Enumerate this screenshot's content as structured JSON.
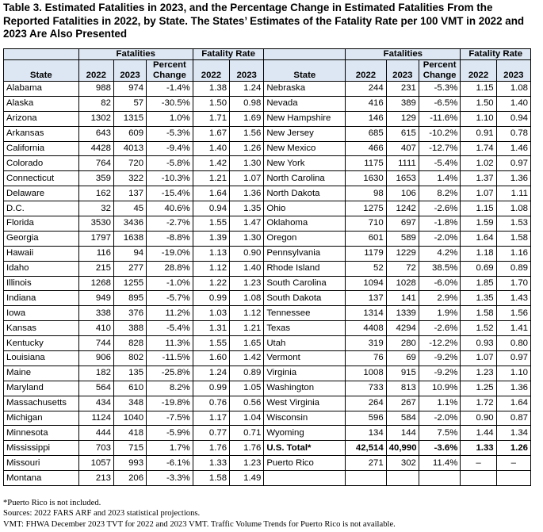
{
  "title": "Table 3. Estimated Fatalities in 2023, and the Percentage Change in Estimated Fatalities From the Reported Fatalities in 2022, by State. The States’ Estimates of the Fatality Rate per 100 VMT in 2022 and 2023 Are Also Presented",
  "headers": {
    "fatalities": "Fatalities",
    "fatality_rate": "Fatality Rate",
    "state": "State",
    "y2022": "2022",
    "y2023": "2023",
    "percent_change": "Percent Change"
  },
  "left_rows": [
    {
      "state": "Alabama",
      "f2022": "988",
      "f2023": "974",
      "pct": "-1.4%",
      "r2022": "1.38",
      "r2023": "1.24"
    },
    {
      "state": "Alaska",
      "f2022": "82",
      "f2023": "57",
      "pct": "-30.5%",
      "r2022": "1.50",
      "r2023": "0.98"
    },
    {
      "state": "Arizona",
      "f2022": "1302",
      "f2023": "1315",
      "pct": "1.0%",
      "r2022": "1.71",
      "r2023": "1.69"
    },
    {
      "state": "Arkansas",
      "f2022": "643",
      "f2023": "609",
      "pct": "-5.3%",
      "r2022": "1.67",
      "r2023": "1.56"
    },
    {
      "state": "California",
      "f2022": "4428",
      "f2023": "4013",
      "pct": "-9.4%",
      "r2022": "1.40",
      "r2023": "1.26"
    },
    {
      "state": "Colorado",
      "f2022": "764",
      "f2023": "720",
      "pct": "-5.8%",
      "r2022": "1.42",
      "r2023": "1.30"
    },
    {
      "state": "Connecticut",
      "f2022": "359",
      "f2023": "322",
      "pct": "-10.3%",
      "r2022": "1.21",
      "r2023": "1.07"
    },
    {
      "state": "Delaware",
      "f2022": "162",
      "f2023": "137",
      "pct": "-15.4%",
      "r2022": "1.64",
      "r2023": "1.36"
    },
    {
      "state": "D.C.",
      "f2022": "32",
      "f2023": "45",
      "pct": "40.6%",
      "r2022": "0.94",
      "r2023": "1.35"
    },
    {
      "state": "Florida",
      "f2022": "3530",
      "f2023": "3436",
      "pct": "-2.7%",
      "r2022": "1.55",
      "r2023": "1.47"
    },
    {
      "state": "Georgia",
      "f2022": "1797",
      "f2023": "1638",
      "pct": "-8.8%",
      "r2022": "1.39",
      "r2023": "1.30"
    },
    {
      "state": "Hawaii",
      "f2022": "116",
      "f2023": "94",
      "pct": "-19.0%",
      "r2022": "1.13",
      "r2023": "0.90"
    },
    {
      "state": "Idaho",
      "f2022": "215",
      "f2023": "277",
      "pct": "28.8%",
      "r2022": "1.12",
      "r2023": "1.40"
    },
    {
      "state": "Illinois",
      "f2022": "1268",
      "f2023": "1255",
      "pct": "-1.0%",
      "r2022": "1.22",
      "r2023": "1.23"
    },
    {
      "state": "Indiana",
      "f2022": "949",
      "f2023": "895",
      "pct": "-5.7%",
      "r2022": "0.99",
      "r2023": "1.08"
    },
    {
      "state": "Iowa",
      "f2022": "338",
      "f2023": "376",
      "pct": "11.2%",
      "r2022": "1.03",
      "r2023": "1.12"
    },
    {
      "state": "Kansas",
      "f2022": "410",
      "f2023": "388",
      "pct": "-5.4%",
      "r2022": "1.31",
      "r2023": "1.21"
    },
    {
      "state": "Kentucky",
      "f2022": "744",
      "f2023": "828",
      "pct": "11.3%",
      "r2022": "1.55",
      "r2023": "1.65"
    },
    {
      "state": "Louisiana",
      "f2022": "906",
      "f2023": "802",
      "pct": "-11.5%",
      "r2022": "1.60",
      "r2023": "1.42"
    },
    {
      "state": "Maine",
      "f2022": "182",
      "f2023": "135",
      "pct": "-25.8%",
      "r2022": "1.24",
      "r2023": "0.89"
    },
    {
      "state": "Maryland",
      "f2022": "564",
      "f2023": "610",
      "pct": "8.2%",
      "r2022": "0.99",
      "r2023": "1.05"
    },
    {
      "state": "Massachusetts",
      "f2022": "434",
      "f2023": "348",
      "pct": "-19.8%",
      "r2022": "0.76",
      "r2023": "0.56"
    },
    {
      "state": "Michigan",
      "f2022": "1124",
      "f2023": "1040",
      "pct": "-7.5%",
      "r2022": "1.17",
      "r2023": "1.04"
    },
    {
      "state": "Minnesota",
      "f2022": "444",
      "f2023": "418",
      "pct": "-5.9%",
      "r2022": "0.77",
      "r2023": "0.71"
    },
    {
      "state": "Mississippi",
      "f2022": "703",
      "f2023": "715",
      "pct": "1.7%",
      "r2022": "1.76",
      "r2023": "1.76"
    },
    {
      "state": "Missouri",
      "f2022": "1057",
      "f2023": "993",
      "pct": "-6.1%",
      "r2022": "1.33",
      "r2023": "1.23"
    },
    {
      "state": "Montana",
      "f2022": "213",
      "f2023": "206",
      "pct": "-3.3%",
      "r2022": "1.58",
      "r2023": "1.49"
    }
  ],
  "right_rows": [
    {
      "state": "Nebraska",
      "f2022": "244",
      "f2023": "231",
      "pct": "-5.3%",
      "r2022": "1.15",
      "r2023": "1.08"
    },
    {
      "state": "Nevada",
      "f2022": "416",
      "f2023": "389",
      "pct": "-6.5%",
      "r2022": "1.50",
      "r2023": "1.40"
    },
    {
      "state": "New Hampshire",
      "f2022": "146",
      "f2023": "129",
      "pct": "-11.6%",
      "r2022": "1.10",
      "r2023": "0.94"
    },
    {
      "state": "New Jersey",
      "f2022": "685",
      "f2023": "615",
      "pct": "-10.2%",
      "r2022": "0.91",
      "r2023": "0.78"
    },
    {
      "state": "New Mexico",
      "f2022": "466",
      "f2023": "407",
      "pct": "-12.7%",
      "r2022": "1.74",
      "r2023": "1.46"
    },
    {
      "state": "New York",
      "f2022": "1175",
      "f2023": "1111",
      "pct": "-5.4%",
      "r2022": "1.02",
      "r2023": "0.97"
    },
    {
      "state": "North Carolina",
      "f2022": "1630",
      "f2023": "1653",
      "pct": "1.4%",
      "r2022": "1.37",
      "r2023": "1.36"
    },
    {
      "state": "North Dakota",
      "f2022": "98",
      "f2023": "106",
      "pct": "8.2%",
      "r2022": "1.07",
      "r2023": "1.11"
    },
    {
      "state": "Ohio",
      "f2022": "1275",
      "f2023": "1242",
      "pct": "-2.6%",
      "r2022": "1.15",
      "r2023": "1.08"
    },
    {
      "state": "Oklahoma",
      "f2022": "710",
      "f2023": "697",
      "pct": "-1.8%",
      "r2022": "1.59",
      "r2023": "1.53"
    },
    {
      "state": "Oregon",
      "f2022": "601",
      "f2023": "589",
      "pct": "-2.0%",
      "r2022": "1.64",
      "r2023": "1.58"
    },
    {
      "state": "Pennsylvania",
      "f2022": "1179",
      "f2023": "1229",
      "pct": "4.2%",
      "r2022": "1.18",
      "r2023": "1.16"
    },
    {
      "state": "Rhode Island",
      "f2022": "52",
      "f2023": "72",
      "pct": "38.5%",
      "r2022": "0.69",
      "r2023": "0.89"
    },
    {
      "state": "South Carolina",
      "f2022": "1094",
      "f2023": "1028",
      "pct": "-6.0%",
      "r2022": "1.85",
      "r2023": "1.70"
    },
    {
      "state": "South Dakota",
      "f2022": "137",
      "f2023": "141",
      "pct": "2.9%",
      "r2022": "1.35",
      "r2023": "1.43"
    },
    {
      "state": "Tennessee",
      "f2022": "1314",
      "f2023": "1339",
      "pct": "1.9%",
      "r2022": "1.58",
      "r2023": "1.56"
    },
    {
      "state": "Texas",
      "f2022": "4408",
      "f2023": "4294",
      "pct": "-2.6%",
      "r2022": "1.52",
      "r2023": "1.41"
    },
    {
      "state": "Utah",
      "f2022": "319",
      "f2023": "280",
      "pct": "-12.2%",
      "r2022": "0.93",
      "r2023": "0.80"
    },
    {
      "state": "Vermont",
      "f2022": "76",
      "f2023": "69",
      "pct": "-9.2%",
      "r2022": "1.07",
      "r2023": "0.97"
    },
    {
      "state": "Virginia",
      "f2022": "1008",
      "f2023": "915",
      "pct": "-9.2%",
      "r2022": "1.23",
      "r2023": "1.10"
    },
    {
      "state": "Washington",
      "f2022": "733",
      "f2023": "813",
      "pct": "10.9%",
      "r2022": "1.25",
      "r2023": "1.36"
    },
    {
      "state": "West Virginia",
      "f2022": "264",
      "f2023": "267",
      "pct": "1.1%",
      "r2022": "1.72",
      "r2023": "1.64"
    },
    {
      "state": "Wisconsin",
      "f2022": "596",
      "f2023": "584",
      "pct": "-2.0%",
      "r2022": "0.90",
      "r2023": "0.87"
    },
    {
      "state": "Wyoming",
      "f2022": "134",
      "f2023": "144",
      "pct": "7.5%",
      "r2022": "1.44",
      "r2023": "1.34"
    },
    {
      "state": "U.S. Total*",
      "f2022": "42,514",
      "f2023": "40,990",
      "pct": "-3.6%",
      "r2022": "1.33",
      "r2023": "1.26",
      "bold": true
    },
    {
      "state": "Puerto Rico",
      "f2022": "271",
      "f2023": "302",
      "pct": "11.4%",
      "r2022": "–",
      "r2023": "–"
    }
  ],
  "footnotes": [
    "*Puerto Rico is not included.",
    "Sources: 2022 FARS ARF and 2023 statistical projections.",
    "VMT: FHWA December 2023 TVT for 2022 and 2023 VMT. Traffic Volume Trends for Puerto Rico is not available."
  ]
}
